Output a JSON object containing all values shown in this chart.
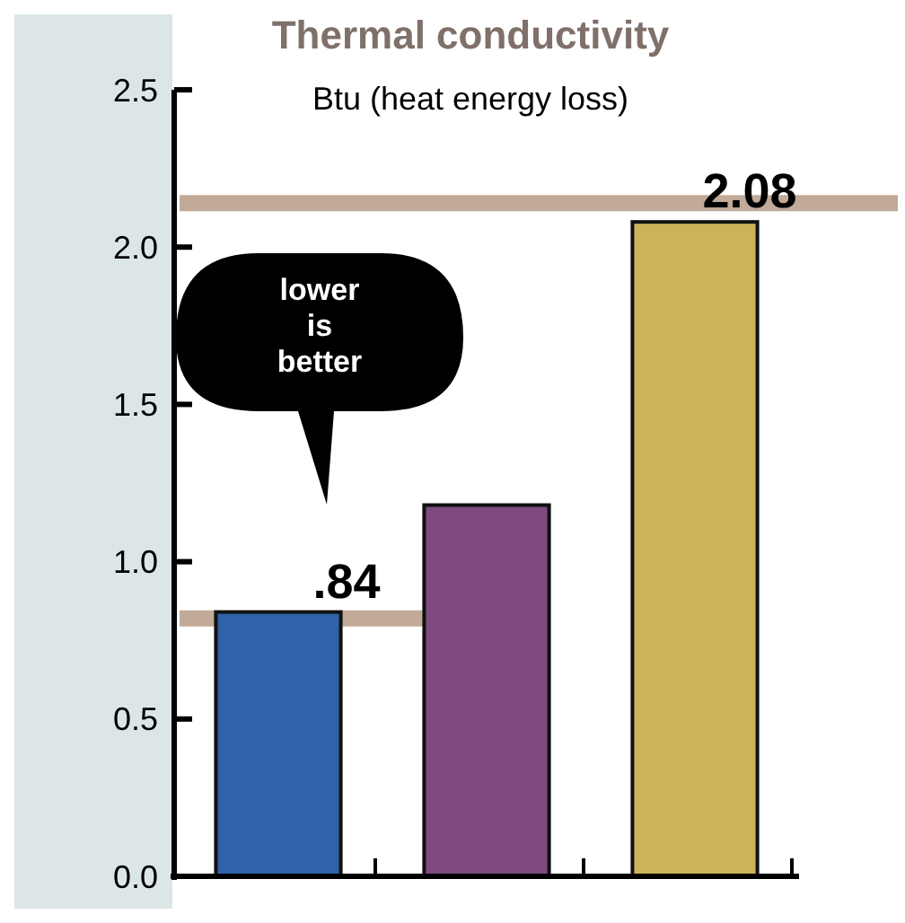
{
  "chart_data": {
    "type": "bar",
    "title": "Thermal conductivity",
    "subtitle": "Btu (heat energy loss)",
    "categories": [
      null,
      null,
      null
    ],
    "values": [
      0.84,
      1.18,
      2.08
    ],
    "colors": [
      "#2f62a8",
      "#7e4a80",
      "#cdb25a"
    ],
    "value_labels": [
      ".84",
      null,
      "2.08"
    ],
    "ylim": [
      0,
      2.5
    ],
    "yticks": [
      {
        "value": 0,
        "label": "0.0"
      },
      {
        "value": 0.5,
        "label": "0.5"
      },
      {
        "value": 1,
        "label": "1.0"
      },
      {
        "value": 1.5,
        "label": "1.5"
      },
      {
        "value": 2,
        "label": "2.0"
      },
      {
        "value": 2.5,
        "label": "2.5"
      }
    ],
    "ref_lines": [
      {
        "axis": "y",
        "value": 0.82,
        "color": "#c1aa98"
      },
      {
        "axis": "y",
        "value": 2.14,
        "color": "#c1aa98"
      }
    ],
    "annotations": [
      "lower is better"
    ],
    "grid": false
  }
}
